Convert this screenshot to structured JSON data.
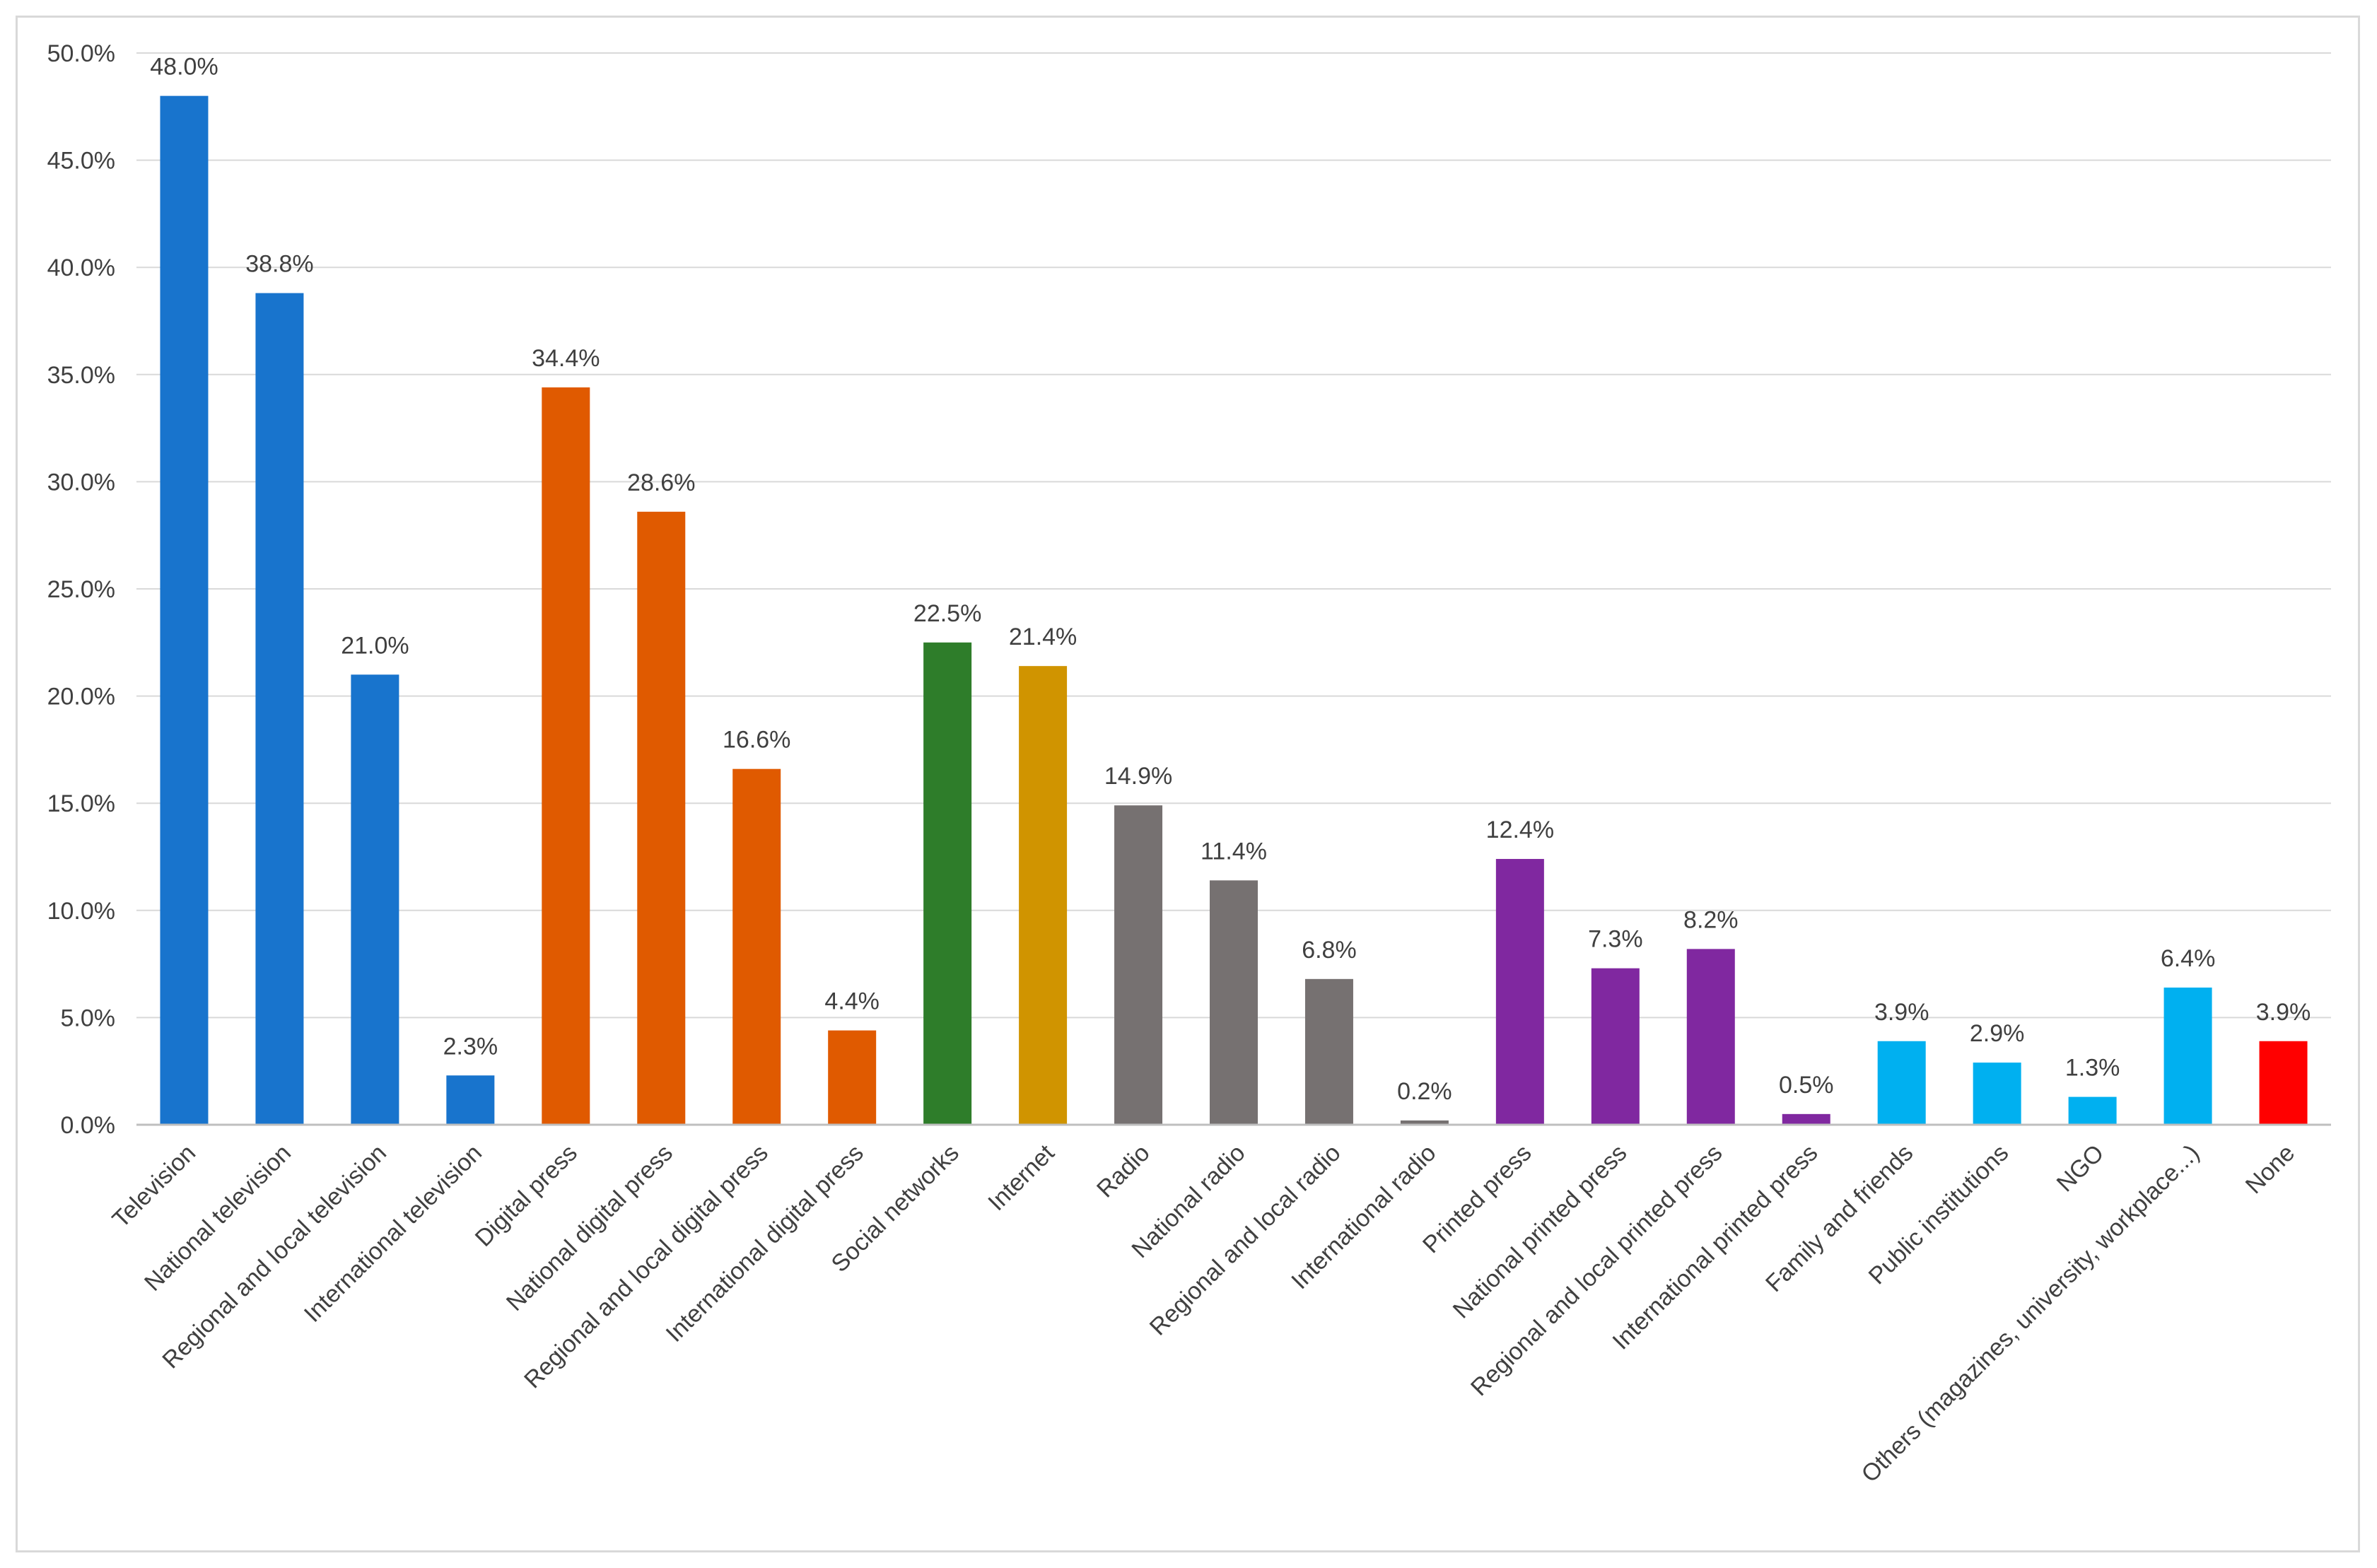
{
  "chart_data": {
    "type": "bar",
    "title": "",
    "xlabel": "",
    "ylabel": "",
    "ylim": [
      0,
      50
    ],
    "yticks": [
      0,
      5,
      10,
      15,
      20,
      25,
      30,
      35,
      40,
      45,
      50
    ],
    "ytick_labels": [
      "0.0%",
      "5.0%",
      "10.0%",
      "15.0%",
      "20.0%",
      "25.0%",
      "30.0%",
      "35.0%",
      "40.0%",
      "45.0%",
      "50.0%"
    ],
    "grid": true,
    "legend": "none",
    "categories": [
      "Television",
      "National television",
      "Regional and local television",
      "International television",
      "Digital press",
      "National digital press",
      "Regional and local digital press",
      "International digital press",
      "Social networks",
      "Internet",
      "Radio",
      "National radio",
      "Regional and local radio",
      "International radio",
      "Printed press",
      "National printed press",
      "Regional and local printed press",
      "International printed press",
      "Family and friends",
      "Public institutions",
      "NGO",
      "Others (magazines, university, workplace...)",
      "None"
    ],
    "values": [
      48.0,
      38.8,
      21.0,
      2.3,
      34.4,
      28.6,
      16.6,
      4.4,
      22.5,
      21.4,
      14.9,
      11.4,
      6.8,
      0.2,
      12.4,
      7.3,
      8.2,
      0.5,
      3.9,
      2.9,
      1.3,
      6.4,
      3.9
    ],
    "value_labels": [
      "48.0%",
      "38.8%",
      "21.0%",
      "2.3%",
      "34.4%",
      "28.6%",
      "16.6%",
      "4.4%",
      "22.5%",
      "21.4%",
      "14.9%",
      "11.4%",
      "6.8%",
      "0.2%",
      "12.4%",
      "7.3%",
      "8.2%",
      "0.5%",
      "3.9%",
      "2.9%",
      "1.3%",
      "6.4%",
      "3.9%"
    ],
    "colors": [
      "#1874cd",
      "#1874cd",
      "#1874cd",
      "#1874cd",
      "#e05a00",
      "#e05a00",
      "#e05a00",
      "#e05a00",
      "#2e7d2a",
      "#d09400",
      "#767171",
      "#767171",
      "#767171",
      "#767171",
      "#8028a0",
      "#8028a0",
      "#8028a0",
      "#8028a0",
      "#00b0f0",
      "#00b0f0",
      "#00b0f0",
      "#00b0f0",
      "#ff0000"
    ],
    "gridline_color": "#d9d9d9",
    "axis_color": "#bfbfbf"
  }
}
